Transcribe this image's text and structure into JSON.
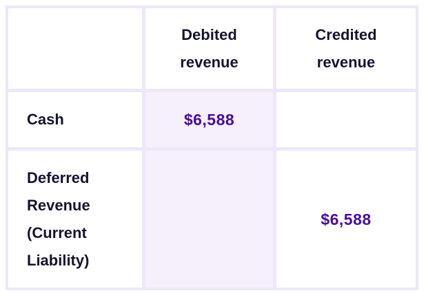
{
  "table": {
    "columns": [
      {
        "label": ""
      },
      {
        "label": "Debited revenue"
      },
      {
        "label": "Credited revenue"
      }
    ],
    "rows": [
      {
        "label": "Cash",
        "debited": "$6,588",
        "credited": ""
      },
      {
        "label": "Deferred Revenue (Current Liability)",
        "debited": "",
        "credited": "$6,588"
      }
    ],
    "colors": {
      "border": "#EDE7F9",
      "highlight_column_bg": "#F5F0FC",
      "header_text": "#15132D",
      "amount_text": "#470CA0",
      "cell_bg": "#FFFFFF"
    }
  }
}
